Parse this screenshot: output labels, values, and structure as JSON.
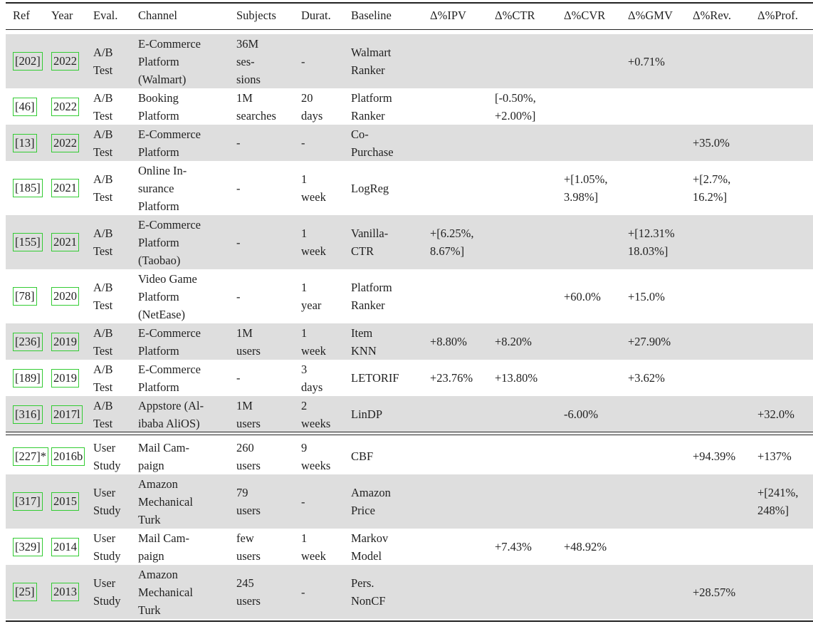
{
  "table": {
    "header": [
      "Ref",
      "Year",
      "Eval.",
      "Channel",
      "Subjects",
      "Durat.",
      "Baseline",
      "Δ%IPV",
      "Δ%CTR",
      "Δ%CVR",
      "Δ%GMV",
      "Δ%Rev.",
      "Δ%Prof."
    ],
    "sections": [
      {
        "rows": [
          [
            [
              "[202]"
            ],
            [
              "2022"
            ],
            [
              "A/B",
              "Test"
            ],
            [
              "E-Commerce",
              "Platform",
              "(Walmart)"
            ],
            [
              "36M",
              "ses-",
              "sions"
            ],
            [
              "-"
            ],
            [
              "Walmart",
              "Ranker"
            ],
            null,
            null,
            null,
            [
              "+0.71%"
            ],
            null,
            null
          ],
          [
            [
              "[46]"
            ],
            [
              "2022"
            ],
            [
              "A/B",
              "Test"
            ],
            [
              "Booking",
              "Platform"
            ],
            [
              "1M",
              "searches"
            ],
            [
              "20",
              "days"
            ],
            [
              "Platform",
              "Ranker"
            ],
            null,
            [
              "[-0.50%,",
              "+2.00%]"
            ],
            null,
            null,
            null,
            null
          ],
          [
            [
              "[13]"
            ],
            [
              "2022"
            ],
            [
              "A/B",
              "Test"
            ],
            [
              "E-Commerce",
              "Platform"
            ],
            [
              "-"
            ],
            [
              "-"
            ],
            [
              "Co-",
              "Purchase"
            ],
            null,
            null,
            null,
            null,
            [
              "+35.0%"
            ],
            null
          ],
          [
            [
              "[185]"
            ],
            [
              "2021"
            ],
            [
              "A/B",
              "Test"
            ],
            [
              "Online In-",
              "surance",
              "Platform"
            ],
            [
              "-"
            ],
            [
              "1",
              "week"
            ],
            [
              "LogReg"
            ],
            null,
            null,
            [
              "+[1.05%,",
              "3.98%]"
            ],
            null,
            [
              "+[2.7%,",
              "16.2%]"
            ],
            null
          ],
          [
            [
              "[155]"
            ],
            [
              "2021"
            ],
            [
              "A/B",
              "Test"
            ],
            [
              "E-Commerce",
              "Platform",
              "(Taobao)"
            ],
            [
              "-"
            ],
            [
              "1",
              "week"
            ],
            [
              "Vanilla-",
              "CTR"
            ],
            [
              "+[6.25%,",
              "8.67%]"
            ],
            null,
            null,
            [
              "+[12.31%",
              "18.03%]"
            ],
            null,
            null
          ],
          [
            [
              "[78]"
            ],
            [
              "2020"
            ],
            [
              "A/B",
              "Test"
            ],
            [
              "Video Game",
              "Platform",
              "(NetEase)"
            ],
            [
              "-"
            ],
            [
              "1",
              "year"
            ],
            [
              "Platform",
              "Ranker"
            ],
            null,
            null,
            [
              "+60.0%"
            ],
            [
              "+15.0%"
            ],
            null,
            null
          ],
          [
            [
              "[236]"
            ],
            [
              "2019"
            ],
            [
              "A/B",
              "Test"
            ],
            [
              "E-Commerce",
              "Platform"
            ],
            [
              "1M",
              "users"
            ],
            [
              "1",
              "week"
            ],
            [
              "Item",
              "KNN"
            ],
            [
              "+8.80%"
            ],
            [
              "+8.20%"
            ],
            null,
            [
              "+27.90%"
            ],
            null,
            null
          ],
          [
            [
              "[189]"
            ],
            [
              "2019"
            ],
            [
              "A/B",
              "Test"
            ],
            [
              "E-Commerce",
              "Platform"
            ],
            [
              "-"
            ],
            [
              "3",
              "days"
            ],
            [
              "LETORIF"
            ],
            [
              "+23.76%"
            ],
            [
              "+13.80%"
            ],
            null,
            [
              "+3.62%"
            ],
            null,
            null
          ],
          [
            [
              "[316]"
            ],
            [
              "2017l"
            ],
            [
              "A/B",
              "Test"
            ],
            [
              "Appstore (Al-",
              "ibaba AliOS)"
            ],
            [
              "1M",
              "users"
            ],
            [
              "2",
              "weeks"
            ],
            [
              "LinDP"
            ],
            null,
            null,
            [
              "-6.00%"
            ],
            null,
            null,
            [
              "+32.0%"
            ]
          ]
        ]
      },
      {
        "rows": [
          [
            [
              "[227]*"
            ],
            [
              "2016b"
            ],
            [
              "User",
              "Study"
            ],
            [
              "Mail Cam-",
              "paign"
            ],
            [
              "260",
              "users"
            ],
            [
              "9",
              "weeks"
            ],
            [
              "CBF"
            ],
            null,
            null,
            null,
            null,
            [
              "+94.39%"
            ],
            [
              "+137%"
            ]
          ],
          [
            [
              "[317]"
            ],
            [
              "2015"
            ],
            [
              "User",
              "Study"
            ],
            [
              "Amazon",
              "Mechanical",
              "Turk"
            ],
            [
              "79",
              "users"
            ],
            [
              "-"
            ],
            [
              "Amazon",
              "Price"
            ],
            null,
            null,
            null,
            null,
            null,
            [
              "+[241%,",
              "248%]"
            ]
          ],
          [
            [
              "[329]"
            ],
            [
              "2014"
            ],
            [
              "User",
              "Study"
            ],
            [
              "Mail Cam-",
              "paign"
            ],
            [
              "few",
              "users"
            ],
            [
              "1",
              "week"
            ],
            [
              "Markov",
              "Model"
            ],
            null,
            [
              "+7.43%"
            ],
            [
              "+48.92%"
            ],
            null,
            null,
            null
          ],
          [
            [
              "[25]"
            ],
            [
              "2013"
            ],
            [
              "User",
              "Study"
            ],
            [
              "Amazon",
              "Mechanical",
              "Turk"
            ],
            [
              "245",
              "users"
            ],
            [
              "-"
            ],
            [
              "Pers.",
              "NonCF"
            ],
            null,
            null,
            null,
            null,
            [
              "+28.57%"
            ],
            null
          ]
        ]
      }
    ]
  }
}
